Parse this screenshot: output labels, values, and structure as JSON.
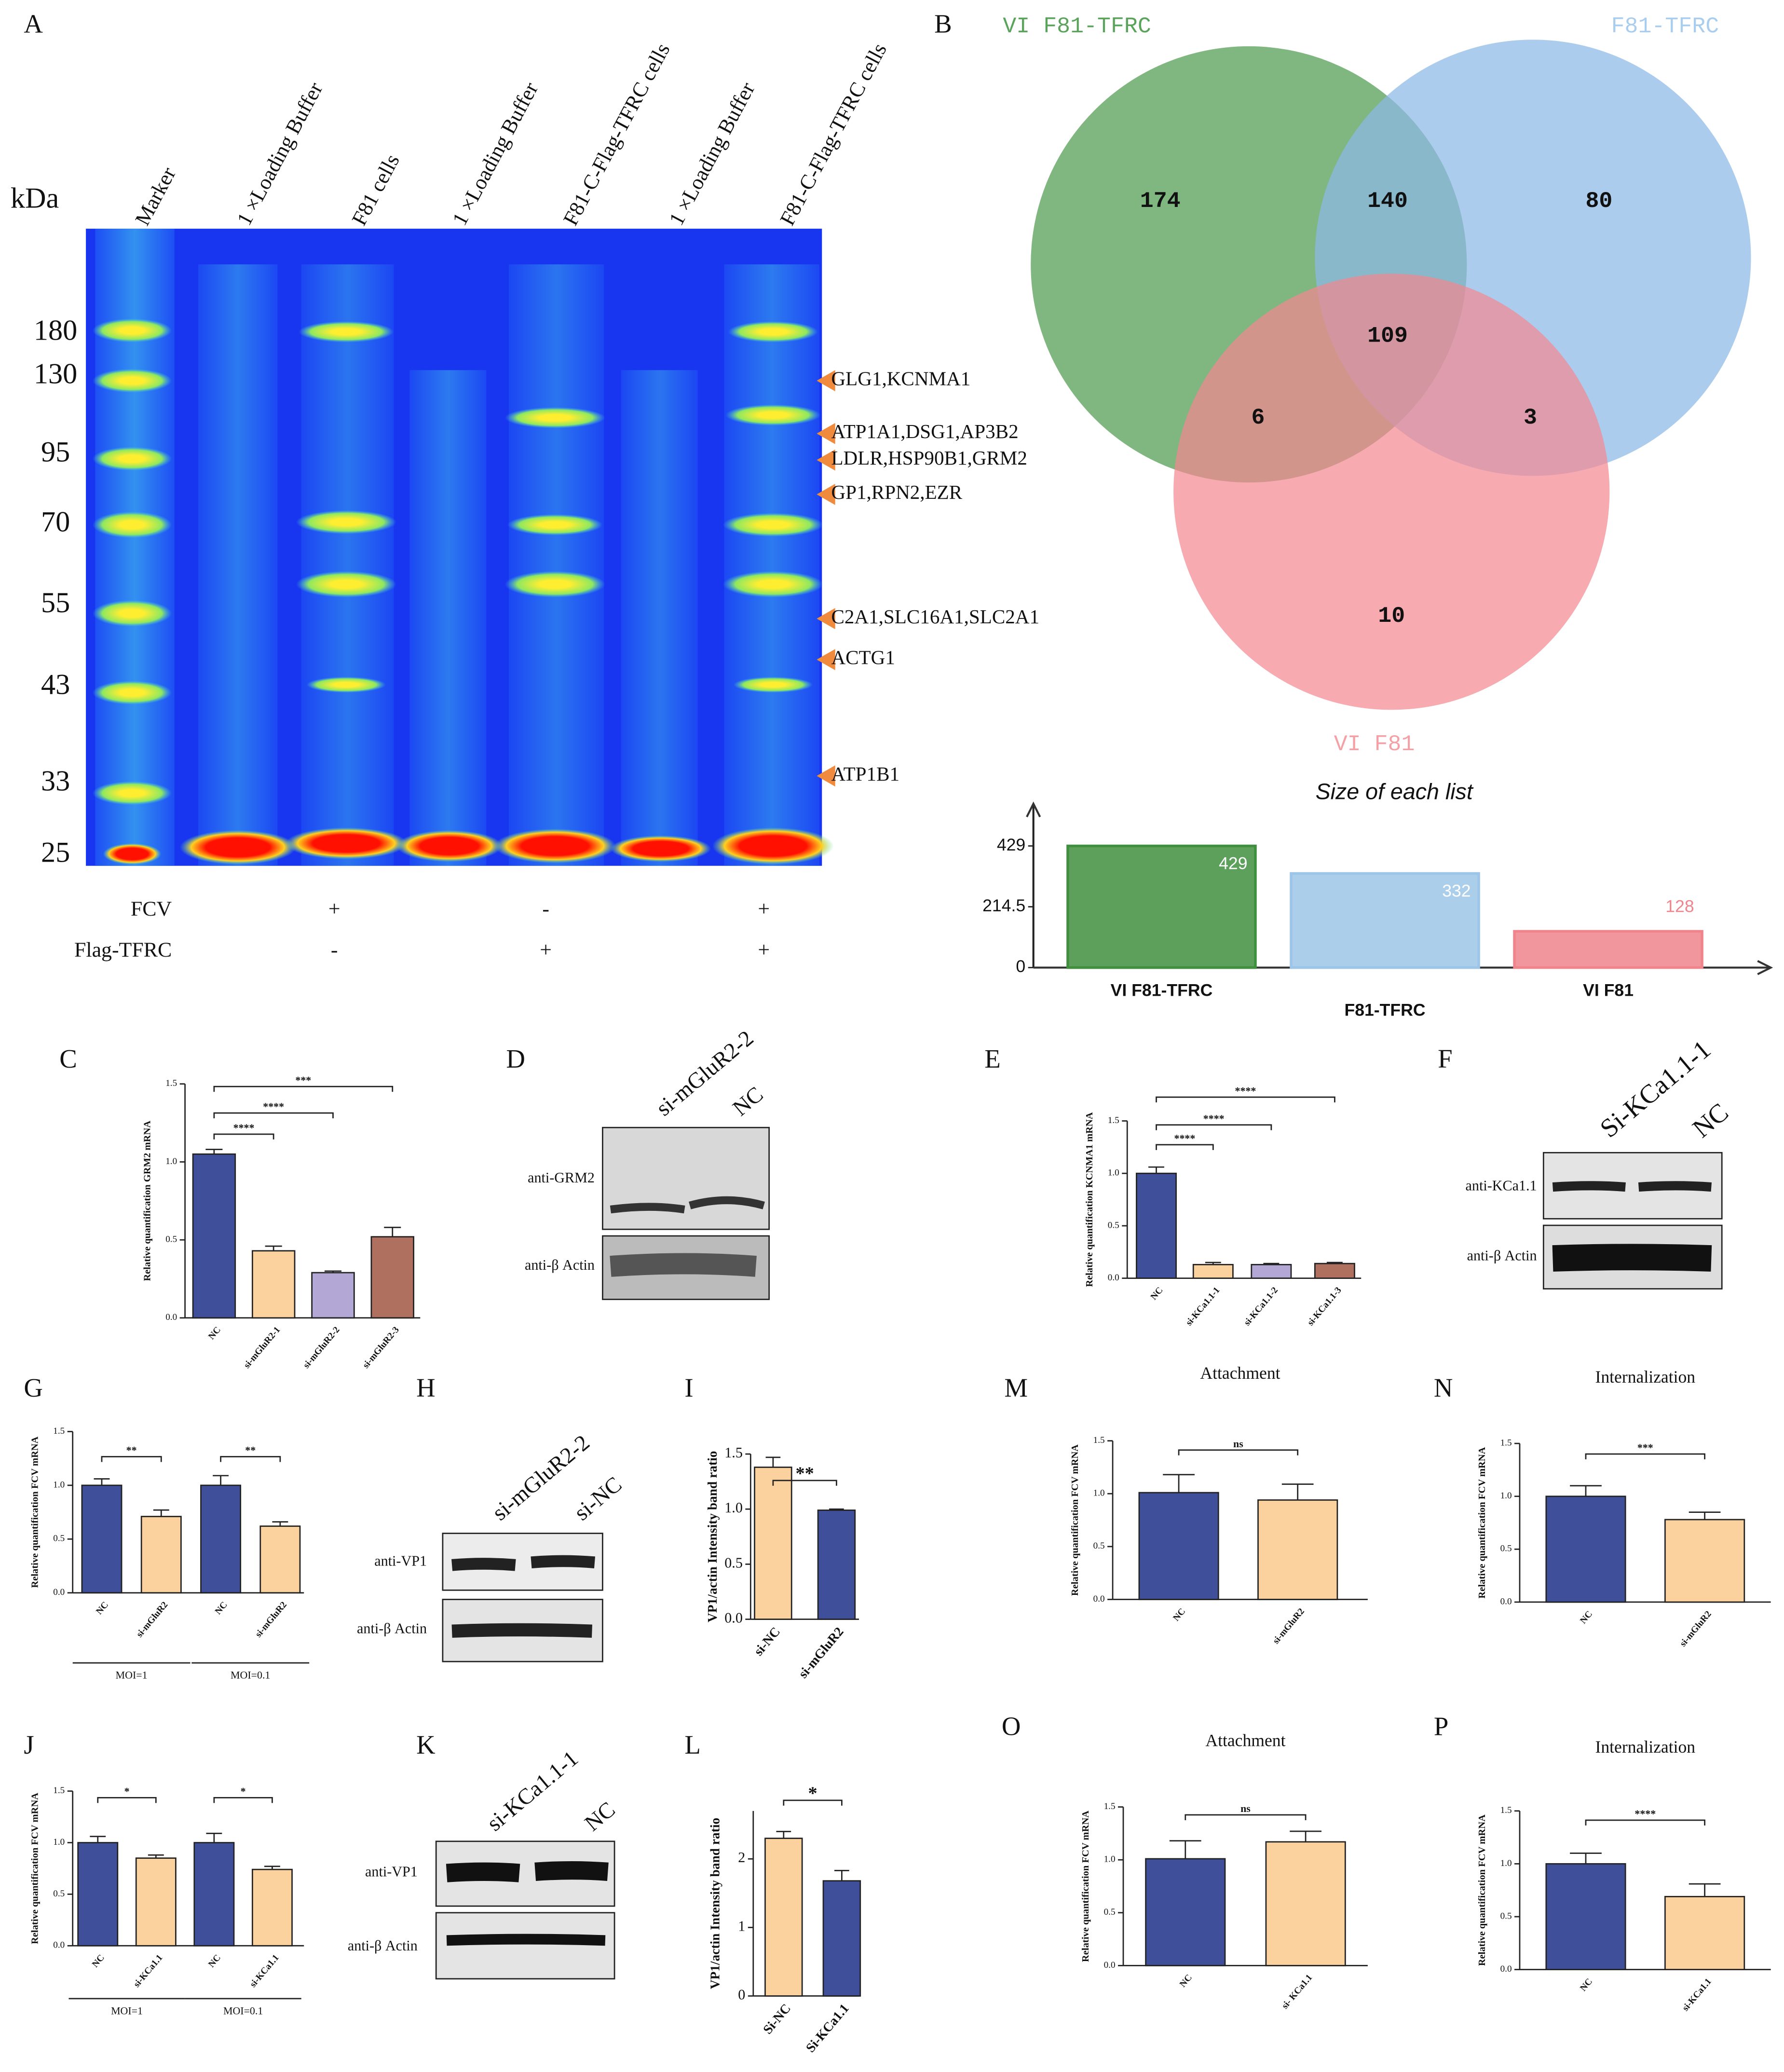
{
  "panel_labels": [
    "A",
    "B",
    "C",
    "D",
    "E",
    "F",
    "G",
    "H",
    "I",
    "M",
    "N",
    "J",
    "K",
    "L",
    "O",
    "P"
  ],
  "gel": {
    "kda_label": "kDa",
    "markers": [
      180,
      130,
      95,
      70,
      55,
      43,
      33,
      25
    ],
    "lanes": [
      "Marker",
      "1 ×Loading Buffer",
      "F81 cells",
      "1 ×Loading Buffer",
      "F81-C-Flag-TFRC cells",
      "1 ×Loading Buffer",
      "F81-C-Flag-TFRC cells"
    ],
    "annotations": [
      "GLG1,KCNMA1",
      "ATP1A1,DSG1,AP3B2",
      "LDLR,HSP90B1,GRM2",
      "GP1,RPN2,EZR",
      "C2A1,SLC16A1,SLC2A1",
      "ACTG1",
      "ATP1B1"
    ],
    "rows": [
      {
        "label": "FCV",
        "signs": [
          "+",
          "-",
          "+"
        ]
      },
      {
        "label": "Flag-TFRC",
        "signs": [
          "-",
          "+",
          "+"
        ]
      }
    ]
  },
  "venn": {
    "sets": [
      "VI F81-TFRC",
      "F81-TFRC",
      "VI F81"
    ],
    "counts": [
      174,
      140,
      80,
      109,
      6,
      3,
      10
    ]
  },
  "blots": [
    {
      "lanes": [
        "si-mGluR2-2",
        "NC"
      ],
      "antibodies": [
        "anti-GRM2",
        "anti-β Actin"
      ]
    },
    {
      "lanes": [
        "Si-KCa1.1-1",
        "NC"
      ],
      "antibodies": [
        "anti-KCa1.1",
        "anti-β Actin"
      ]
    },
    {
      "lanes": [
        "si-mGluR2-2",
        "si-NC"
      ],
      "antibodies": [
        "anti-VP1",
        "anti-β Actin"
      ]
    },
    {
      "lanes": [
        "si-KCa1.1-1",
        "NC"
      ],
      "antibodies": [
        "anti-VP1",
        "anti-β Actin"
      ]
    }
  ],
  "chart_data": [
    {
      "type": "bar",
      "title": "Size of each list",
      "categories": [
        "VI F81-TFRC",
        "F81-TFRC",
        "VI F81"
      ],
      "values": [
        429,
        332,
        128
      ],
      "colors": [
        "#3f8f3f",
        "#9cc5e8",
        "#f0848c"
      ],
      "ylim": [
        0,
        578
      ],
      "yticks": [
        0,
        214.5,
        429
      ]
    },
    {
      "type": "bar",
      "ylabel": "Relative quantification GRM2 mRNA",
      "categories": [
        "NC",
        "si-mGluR2-1",
        "si-mGluR2-2",
        "si-mGluR2-3"
      ],
      "values": [
        1.05,
        0.43,
        0.29,
        0.52
      ],
      "errors": [
        0.03,
        0.03,
        0.01,
        0.06
      ],
      "colors": [
        "#3f4f9a",
        "#fbd19e",
        "#b3a7d6",
        "#b0705f"
      ],
      "ylim": [
        0,
        1.5
      ],
      "yticks": [
        {
          "value": 0,
          "label": "0.0"
        },
        0.5,
        {
          "value": 1,
          "label": "1.0"
        },
        1.5
      ],
      "significance": [
        "****",
        "****",
        "***"
      ]
    },
    {
      "type": "bar",
      "ylabel": "Relative quantification KCNMA1 mRNA",
      "categories": [
        "NC",
        "si-KCa1.1-1",
        "si-KCa1.1-2",
        "si-KCa1.1-3"
      ],
      "values": [
        1.0,
        0.13,
        0.13,
        0.14
      ],
      "errors": [
        0.06,
        0.02,
        0.01,
        0.01
      ],
      "colors": [
        "#3f4f9a",
        "#fbd19e",
        "#b3a7d6",
        "#b0705f"
      ],
      "ylim": [
        0,
        1.5
      ],
      "yticks": [
        {
          "value": 0,
          "label": "0.0"
        },
        0.5,
        {
          "value": 1,
          "label": "1.0"
        },
        1.5
      ],
      "significance": [
        "****",
        "****",
        "****"
      ]
    },
    {
      "type": "bar",
      "ylabel": "Relative quantification FCV mRNA",
      "categories": [
        "NC",
        "si-mGluR2",
        "NC",
        "si-mGluR2"
      ],
      "groups": [
        "MOI=1",
        "MOI=0.1"
      ],
      "values": [
        1.0,
        0.71,
        1.0,
        0.62
      ],
      "errors": [
        0.06,
        0.06,
        0.09,
        0.04
      ],
      "colors": [
        "#3f4f9a",
        "#fbd19e",
        "#3f4f9a",
        "#fbd19e"
      ],
      "ylim": [
        0,
        1.5
      ],
      "yticks": [
        {
          "value": 0,
          "label": "0.0"
        },
        0.5,
        {
          "value": 1,
          "label": "1.0"
        },
        1.5
      ],
      "significance": [
        "**",
        "**"
      ]
    },
    {
      "type": "bar",
      "ylabel": "VP1/actin Intensity band ratio",
      "categories": [
        "si-NC",
        "si-mGluR2"
      ],
      "values": [
        1.38,
        0.99
      ],
      "errors": [
        0.09,
        0.01
      ],
      "colors": [
        "#fbd19e",
        "#3f4f9a"
      ],
      "ylim": [
        0,
        1.5
      ],
      "yticks": [
        {
          "value": 0,
          "label": "0.0"
        },
        0.5,
        {
          "value": 1,
          "label": "1.0"
        },
        1.5
      ],
      "significance": [
        "**"
      ]
    },
    {
      "type": "bar",
      "ylabel": "Relative quantification FCV mRNA",
      "categories": [
        "NC",
        "si-KCa1.1",
        "NC",
        "si-KCa1.1"
      ],
      "groups": [
        "MOI=1",
        "MOI=0.1"
      ],
      "values": [
        1.0,
        0.85,
        1.0,
        0.74
      ],
      "errors": [
        0.06,
        0.03,
        0.09,
        0.03
      ],
      "colors": [
        "#3f4f9a",
        "#fbd19e",
        "#3f4f9a",
        "#fbd19e"
      ],
      "ylim": [
        0,
        1.5
      ],
      "yticks": [
        {
          "value": 0,
          "label": "0.0"
        },
        0.5,
        {
          "value": 1,
          "label": "1.0"
        },
        1.5
      ],
      "significance": [
        "*",
        "*"
      ]
    },
    {
      "type": "bar",
      "ylabel": "VP1/actin Intensity band ratio",
      "categories": [
        "Si-NC",
        "Si-KCa1.1"
      ],
      "values": [
        2.3,
        1.68
      ],
      "errors": [
        0.1,
        0.15
      ],
      "colors": [
        "#fbd19e",
        "#3f4f9a"
      ],
      "ylim": [
        0,
        2.7
      ],
      "yticks": [
        0,
        1,
        2
      ],
      "significance": [
        "*"
      ]
    },
    {
      "type": "bar",
      "title": "Attachment",
      "ylabel": "Relative quantification FCV mRNA",
      "categories": [
        "NC",
        "si-mGluR2"
      ],
      "values": [
        1.01,
        0.94
      ],
      "errors": [
        0.17,
        0.15
      ],
      "colors": [
        "#3f4f9a",
        "#fbd19e"
      ],
      "ylim": [
        0,
        1.5
      ],
      "yticks": [
        {
          "value": 0,
          "label": "0.0"
        },
        0.5,
        {
          "value": 1,
          "label": "1.0"
        },
        1.5
      ],
      "significance": [
        "ns"
      ]
    },
    {
      "type": "bar",
      "title": "Internalization",
      "ylabel": "Relative quantification FCV mRNA",
      "categories": [
        "NC",
        "si-mGluR2"
      ],
      "values": [
        1.0,
        0.78
      ],
      "errors": [
        0.1,
        0.07
      ],
      "colors": [
        "#3f4f9a",
        "#fbd19e"
      ],
      "ylim": [
        0,
        1.5
      ],
      "yticks": [
        {
          "value": 0,
          "label": "0.0"
        },
        0.5,
        {
          "value": 1,
          "label": "1.0"
        },
        1.5
      ],
      "significance": [
        "***"
      ]
    },
    {
      "type": "bar",
      "title": "Attachment",
      "ylabel": "Relative quantification FCV mRNA",
      "categories": [
        "NC",
        "si- KCa1.1"
      ],
      "values": [
        1.01,
        1.17
      ],
      "errors": [
        0.17,
        0.1
      ],
      "colors": [
        "#3f4f9a",
        "#fbd19e"
      ],
      "ylim": [
        0,
        1.5
      ],
      "yticks": [
        {
          "value": 0,
          "label": "0.0"
        },
        0.5,
        {
          "value": 1,
          "label": "1.0"
        },
        1.5
      ],
      "significance": [
        "ns"
      ]
    },
    {
      "type": "bar",
      "title": "Internalization",
      "ylabel": "Relative quantification FCV mRNA",
      "categories": [
        "NC",
        "si-KCa1.1"
      ],
      "values": [
        1.0,
        0.69
      ],
      "errors": [
        0.1,
        0.12
      ],
      "colors": [
        "#3f4f9a",
        "#fbd19e"
      ],
      "ylim": [
        0,
        1.5
      ],
      "yticks": [
        {
          "value": 0,
          "label": "0.0"
        },
        0.5,
        {
          "value": 1,
          "label": "1.0"
        },
        1.5
      ],
      "significance": [
        "****"
      ]
    }
  ]
}
